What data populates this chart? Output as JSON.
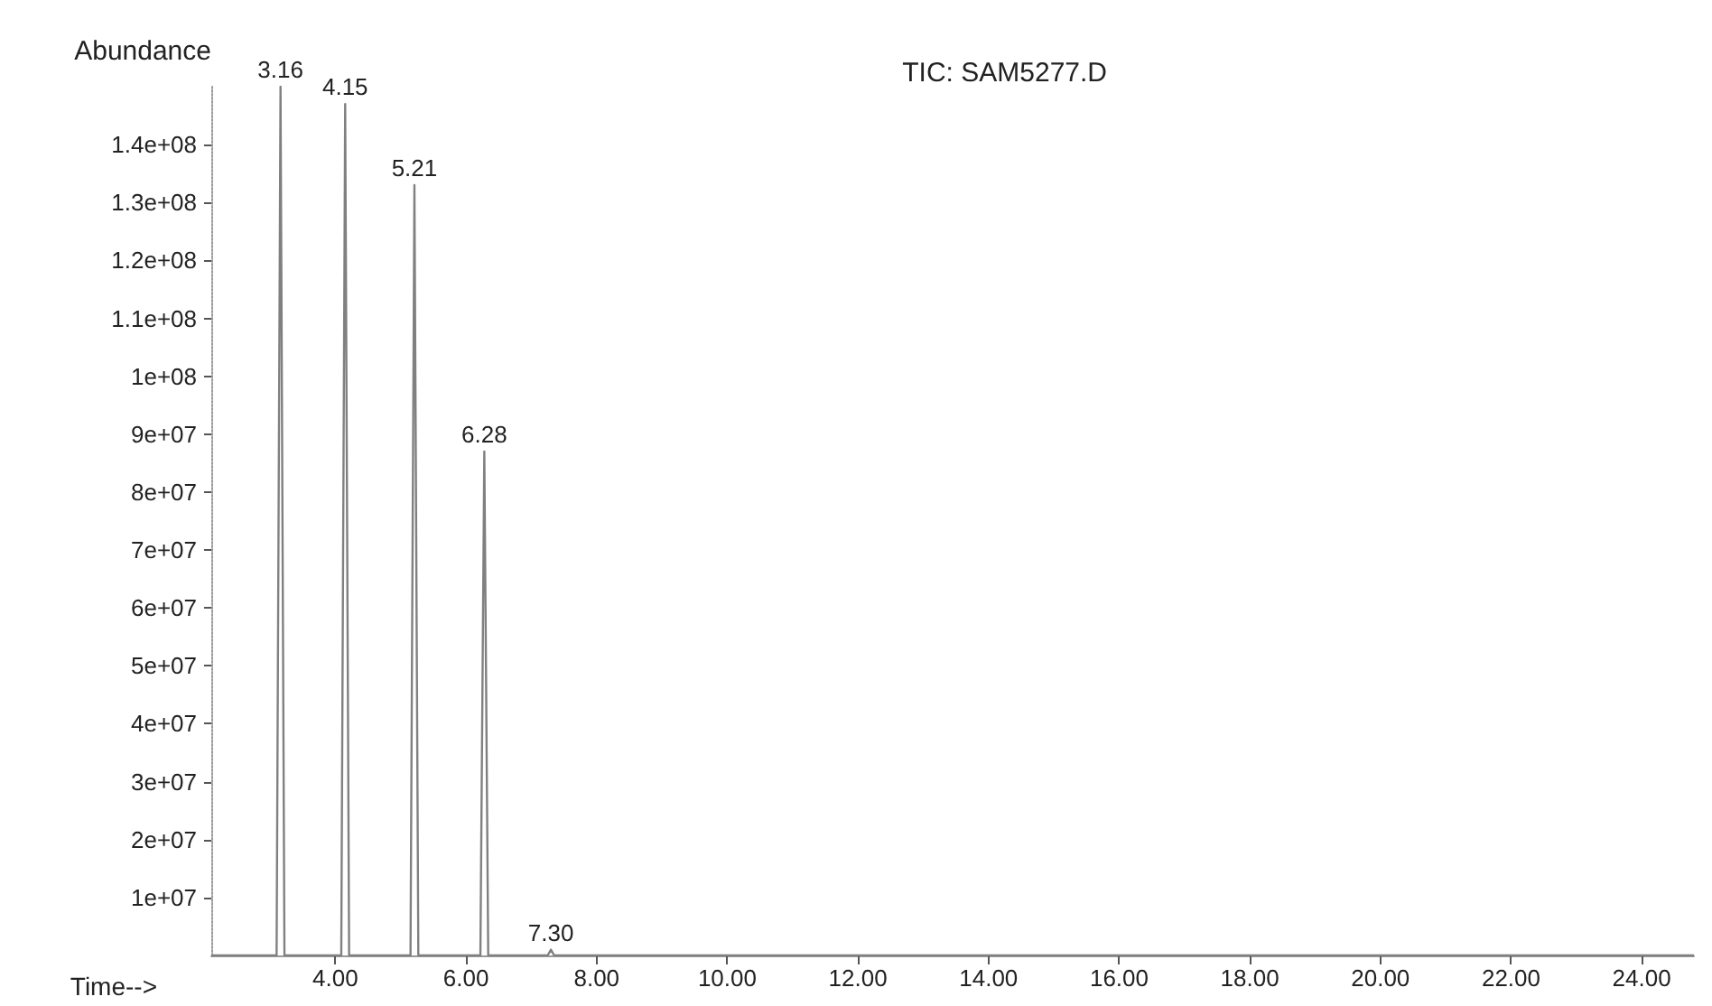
{
  "chart_data": {
    "type": "line",
    "title": "TIC: SAM5277.D",
    "xlabel": "Time-->",
    "ylabel": "Abundance",
    "series": [
      {
        "color": "#808080",
        "x": [
          2.1,
          3.1,
          3.16,
          3.22,
          4.09,
          4.15,
          4.21,
          5.15,
          5.21,
          5.27,
          6.22,
          6.28,
          6.34,
          7.25,
          7.3,
          7.35,
          24.8
        ],
        "values": [
          0,
          0,
          150000000,
          0,
          0,
          147000000,
          0,
          0,
          133000000,
          0,
          0,
          87000000,
          0,
          0,
          1000000,
          0,
          0
        ]
      }
    ],
    "annotations": [
      {
        "text": "3.16",
        "x": 3.16,
        "y": 150000000
      },
      {
        "text": "4.15",
        "x": 4.15,
        "y": 147000000
      },
      {
        "text": "5.21",
        "x": 5.21,
        "y": 133000000
      },
      {
        "text": "6.28",
        "x": 6.28,
        "y": 87000000
      },
      {
        "text": "7.30",
        "x": 7.3,
        "y": 1000000
      }
    ],
    "xlim": [
      2.1,
      24.8
    ],
    "xticks": [
      {
        "value": 4,
        "label": "4.00"
      },
      {
        "value": 6,
        "label": "6.00"
      },
      {
        "value": 8,
        "label": "8.00"
      },
      {
        "value": 10,
        "label": "10.00"
      },
      {
        "value": 12,
        "label": "12.00"
      },
      {
        "value": 14,
        "label": "14.00"
      },
      {
        "value": 16,
        "label": "16.00"
      },
      {
        "value": 18,
        "label": "18.00"
      },
      {
        "value": 20,
        "label": "20.00"
      },
      {
        "value": 22,
        "label": "22.00"
      },
      {
        "value": 24,
        "label": "24.00"
      }
    ],
    "ylim": [
      0,
      150000000
    ],
    "yticks": [
      {
        "value": 10000000,
        "label": "1e+07"
      },
      {
        "value": 20000000,
        "label": "2e+07"
      },
      {
        "value": 30000000,
        "label": "3e+07"
      },
      {
        "value": 40000000,
        "label": "4e+07"
      },
      {
        "value": 50000000,
        "label": "5e+07"
      },
      {
        "value": 60000000,
        "label": "6e+07"
      },
      {
        "value": 70000000,
        "label": "7e+07"
      },
      {
        "value": 80000000,
        "label": "8e+07"
      },
      {
        "value": 90000000,
        "label": "9e+07"
      },
      {
        "value": 100000000,
        "label": "1e+08"
      },
      {
        "value": 110000000,
        "label": "1.1e+08"
      },
      {
        "value": 120000000,
        "label": "1.2e+08"
      },
      {
        "value": 130000000,
        "label": "1.3e+08"
      },
      {
        "value": 140000000,
        "label": "1.4e+08"
      }
    ],
    "grid": false,
    "marker": "none",
    "line_style": "solid"
  }
}
